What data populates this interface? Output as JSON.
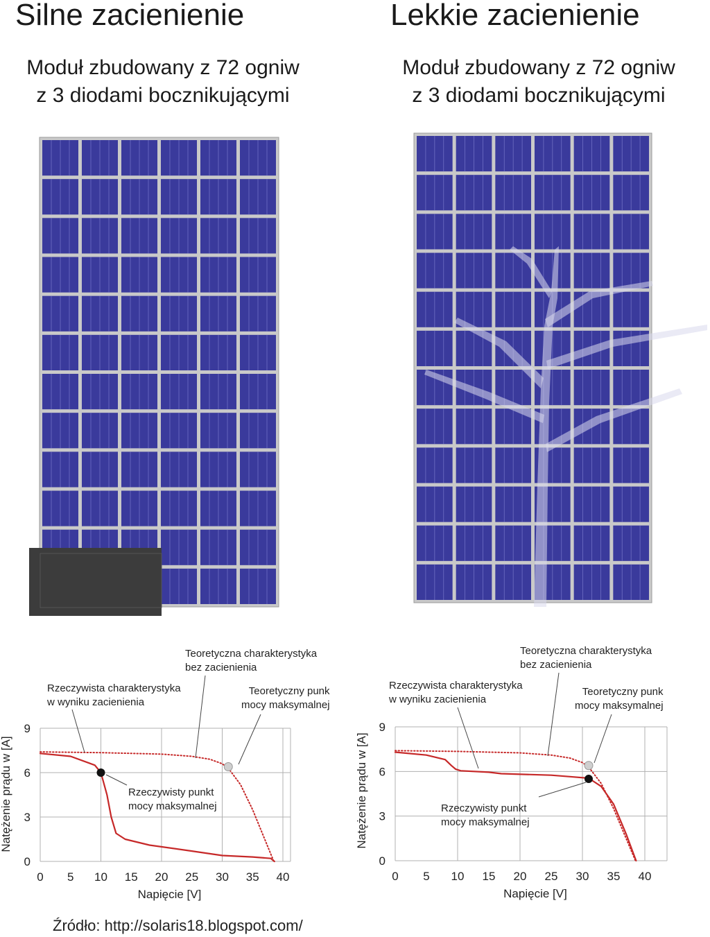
{
  "left": {
    "title": "Silne zacienienie",
    "subtitle_line1": "Moduł zbudowany z 72 ogniw",
    "subtitle_line2": "z 3 diodami bocznikującymi",
    "label_theoretical_line1": "Teoretyczna charakterystyka",
    "label_theoretical_line2": "bez zacienienia",
    "label_actual_line1": "Rzeczywista charakterystyka",
    "label_actual_line2": "w wyniku zacienienia",
    "label_theo_point_line1": "Teoretyczny punk",
    "label_theo_point_line2": "mocy maksymalnej",
    "label_real_point_line1": "Rzeczywisty punkt",
    "label_real_point_line2": "mocy maksymalnej"
  },
  "right": {
    "title": "Lekkie zacienienie",
    "subtitle_line1": "Moduł zbudowany z 72 ogniw",
    "subtitle_line2": "z 3 diodami bocznikującymi",
    "label_theoretical_line1": "Teoretyczna charakterystyka",
    "label_theoretical_line2": "bez zacienienia",
    "label_actual_line1": "Rzeczywista charakterystyka",
    "label_actual_line2": "w wyniku zacienienia",
    "label_theo_point_line1": "Teoretyczny punk",
    "label_theo_point_line2": "mocy maksymalnej",
    "label_real_point_line1": "Rzeczywisty punkt",
    "label_real_point_line2": "mocy maksymalnej"
  },
  "source": "Źródło: http://solaris18.blogspot.com/",
  "colors": {
    "cell": "#3a3a9c",
    "frame": "#c9c9c9",
    "shade": "#3c3c3c",
    "curve": "#c62828",
    "grid": "#b0b0b0"
  },
  "chart_data": [
    {
      "type": "line",
      "xlabel": "Napięcie [V]",
      "ylabel": "Natężenie prądu w [A]",
      "xlim": [
        0,
        42
      ],
      "ylim": [
        0,
        9
      ],
      "xticks": [
        "0",
        "5",
        "10",
        "15",
        "20",
        "25",
        "30",
        "35",
        "40"
      ],
      "yticks": [
        "0",
        "3",
        "6",
        "9"
      ],
      "series": [
        {
          "style": "dotted",
          "x": [
            0,
            10,
            20,
            25,
            28,
            30,
            31,
            33,
            35,
            37,
            38.5
          ],
          "y": [
            7.4,
            7.35,
            7.25,
            7.1,
            6.9,
            6.6,
            6.3,
            5.2,
            3.5,
            1.5,
            0
          ]
        },
        {
          "style": "solid",
          "x": [
            0,
            5,
            9,
            10,
            11,
            11.7,
            12.5,
            14,
            18,
            25,
            30,
            35,
            38,
            38.6
          ],
          "y": [
            7.3,
            7.1,
            6.5,
            6.0,
            4.5,
            3.0,
            1.9,
            1.5,
            1.1,
            0.7,
            0.4,
            0.3,
            0.2,
            0
          ]
        }
      ],
      "points": [
        {
          "x": 31,
          "y": 6.4,
          "kind": "theoretical"
        },
        {
          "x": 10,
          "y": 6.0,
          "kind": "actual"
        }
      ]
    },
    {
      "type": "line",
      "xlabel": "Napięcie [V]",
      "ylabel": "Natężenie prądu w [A]",
      "xlim": [
        0,
        43
      ],
      "ylim": [
        0,
        9
      ],
      "xticks": [
        "0",
        "5",
        "10",
        "15",
        "20",
        "25",
        "30",
        "35",
        "40"
      ],
      "yticks": [
        "0",
        "3",
        "6",
        "9"
      ],
      "series": [
        {
          "style": "dotted",
          "x": [
            0,
            10,
            20,
            25,
            28,
            30,
            31,
            33,
            35,
            37,
            38.5
          ],
          "y": [
            7.4,
            7.35,
            7.25,
            7.1,
            6.9,
            6.6,
            6.3,
            5.2,
            3.5,
            1.5,
            0
          ]
        },
        {
          "style": "solid",
          "x": [
            0,
            5,
            8,
            9,
            9.7,
            10.5,
            15,
            17,
            25,
            28,
            31,
            33,
            35,
            37,
            38.6
          ],
          "y": [
            7.3,
            7.1,
            6.8,
            6.4,
            6.15,
            6.05,
            5.95,
            5.85,
            5.75,
            5.65,
            5.55,
            5.0,
            3.8,
            1.8,
            0
          ]
        }
      ],
      "points": [
        {
          "x": 31,
          "y": 6.4,
          "kind": "theoretical"
        },
        {
          "x": 31,
          "y": 5.5,
          "kind": "actual"
        }
      ]
    }
  ]
}
